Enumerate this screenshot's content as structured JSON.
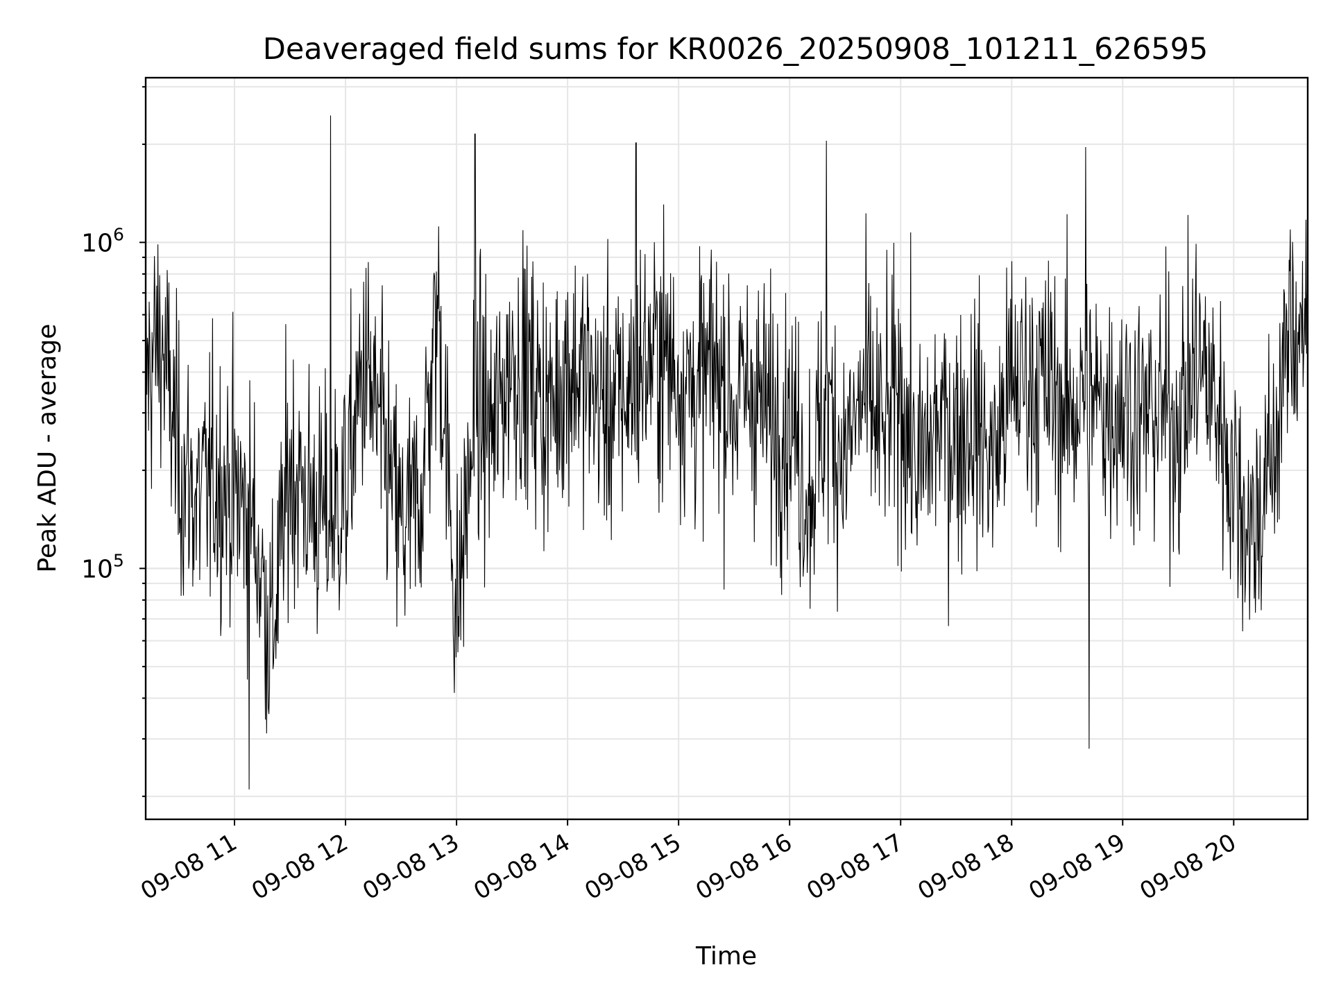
{
  "chart_data": {
    "type": "line",
    "title": "Deaveraged field sums for KR0026_20250908_101211_626595",
    "xlabel": "Time",
    "ylabel": "Peak ADU - average",
    "x_axis": {
      "type": "time",
      "range": [
        "2025-09-08 10:12",
        "2025-09-08 20:40"
      ],
      "ticks": [
        "2025-09-08 11:00",
        "2025-09-08 12:00",
        "2025-09-08 13:00",
        "2025-09-08 14:00",
        "2025-09-08 15:00",
        "2025-09-08 16:00",
        "2025-09-08 17:00",
        "2025-09-08 18:00",
        "2025-09-08 19:00",
        "2025-09-08 20:00"
      ],
      "tick_labels": [
        "09-08 11",
        "09-08 12",
        "09-08 13",
        "09-08 14",
        "09-08 15",
        "09-08 16",
        "09-08 17",
        "09-08 18",
        "09-08 19",
        "09-08 20"
      ]
    },
    "y_axis": {
      "scale": "log",
      "range": [
        17000,
        3200000
      ],
      "major_ticks": [
        100000,
        1000000
      ],
      "major_tick_labels": [
        {
          "base": "10",
          "exp": "5"
        },
        {
          "base": "10",
          "exp": "6"
        }
      ]
    },
    "grid": true,
    "legend": "none",
    "line_color": "#000000",
    "grid_color": "#e6e6e6",
    "series": [
      {
        "x": [
          "2025-09-08 10:12",
          "2025-09-08 10:20",
          "2025-09-08 10:30",
          "2025-09-08 10:40",
          "2025-09-08 10:50",
          "2025-09-08 11:00",
          "2025-09-08 11:10",
          "2025-09-08 11:20",
          "2025-09-08 11:30",
          "2025-09-08 11:40",
          "2025-09-08 11:50",
          "2025-09-08 12:00",
          "2025-09-08 12:10",
          "2025-09-08 12:20",
          "2025-09-08 12:30",
          "2025-09-08 12:40",
          "2025-09-08 12:50",
          "2025-09-08 13:00",
          "2025-09-08 13:10",
          "2025-09-08 13:20",
          "2025-09-08 13:30",
          "2025-09-08 13:40",
          "2025-09-08 13:50",
          "2025-09-08 14:00",
          "2025-09-08 14:10",
          "2025-09-08 14:20",
          "2025-09-08 14:30",
          "2025-09-08 14:40",
          "2025-09-08 14:50",
          "2025-09-08 15:00",
          "2025-09-08 15:10",
          "2025-09-08 15:20",
          "2025-09-08 15:30",
          "2025-09-08 15:40",
          "2025-09-08 15:50",
          "2025-09-08 16:00",
          "2025-09-08 16:10",
          "2025-09-08 16:20",
          "2025-09-08 16:30",
          "2025-09-08 16:40",
          "2025-09-08 16:50",
          "2025-09-08 17:00",
          "2025-09-08 17:10",
          "2025-09-08 17:20",
          "2025-09-08 17:30",
          "2025-09-08 17:40",
          "2025-09-08 17:50",
          "2025-09-08 18:00",
          "2025-09-08 18:10",
          "2025-09-08 18:20",
          "2025-09-08 18:30",
          "2025-09-08 18:40",
          "2025-09-08 18:50",
          "2025-09-08 19:00",
          "2025-09-08 19:10",
          "2025-09-08 19:20",
          "2025-09-08 19:30",
          "2025-09-08 19:40",
          "2025-09-08 19:50",
          "2025-09-08 20:00",
          "2025-09-08 20:10",
          "2025-09-08 20:20",
          "2025-09-08 20:30",
          "2025-09-08 20:40"
        ],
        "y": [
          380000,
          520000,
          210000,
          160000,
          190000,
          170000,
          140000,
          60000,
          210000,
          160000,
          140000,
          170000,
          420000,
          240000,
          130000,
          160000,
          650000,
          70000,
          310000,
          260000,
          450000,
          380000,
          300000,
          420000,
          380000,
          310000,
          330000,
          420000,
          460000,
          390000,
          350000,
          420000,
          320000,
          360000,
          280000,
          300000,
          170000,
          310000,
          220000,
          340000,
          260000,
          350000,
          190000,
          280000,
          260000,
          290000,
          210000,
          370000,
          380000,
          360000,
          300000,
          340000,
          310000,
          330000,
          290000,
          310000,
          280000,
          440000,
          330000,
          190000,
          130000,
          200000,
          520000,
          610000
        ]
      }
    ],
    "annotations": [
      {
        "x": "2025-09-08 11:52",
        "y": 2450000
      },
      {
        "x": "2025-09-08 13:10",
        "y": 2150000
      },
      {
        "x": "2025-09-08 14:37",
        "y": 2020000
      },
      {
        "x": "2025-09-08 16:20",
        "y": 2050000
      },
      {
        "x": "2025-09-08 18:40",
        "y": 1960000
      },
      {
        "x": "2025-09-08 11:08",
        "y": 21000
      },
      {
        "x": "2025-09-08 18:42",
        "y": 28000
      }
    ]
  }
}
